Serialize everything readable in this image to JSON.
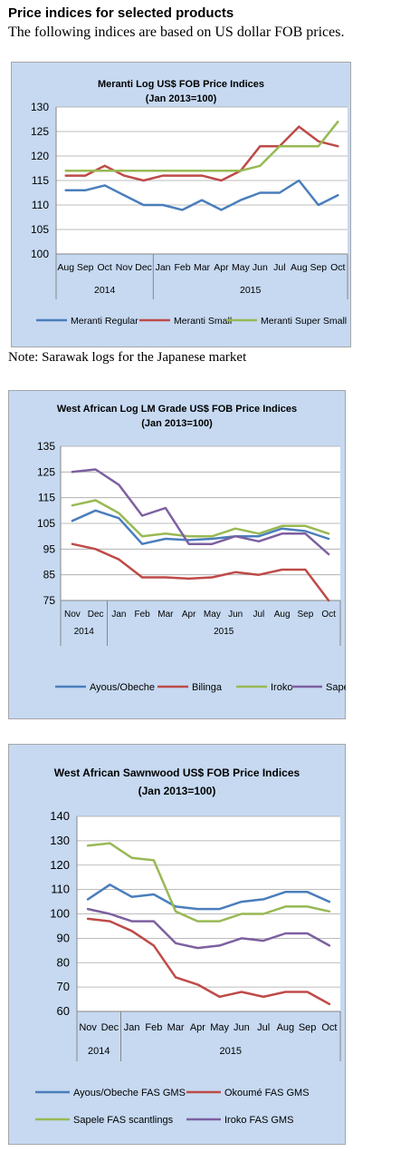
{
  "header": {
    "title": "Price indices for selected products",
    "subtitle": "The following indices are based on US dollar FOB prices."
  },
  "note": "Note: Sarawak logs for the Japanese market",
  "chart_data": [
    {
      "type": "line",
      "title": "Meranti Log US$ FOB Price Indices",
      "subtitle": "(Jan 2013=100)",
      "categories": [
        "Aug",
        "Sep",
        "Oct",
        "Nov",
        "Dec",
        "Jan",
        "Feb",
        "Mar",
        "Apr",
        "May",
        "Jun",
        "Jul",
        "Aug",
        "Sep",
        "Oct"
      ],
      "year_groups": [
        {
          "label": "2014",
          "from": 0,
          "to": 4
        },
        {
          "label": "2015",
          "from": 5,
          "to": 14
        }
      ],
      "ylim": [
        100,
        130
      ],
      "yticks": [
        100,
        105,
        110,
        115,
        120,
        125,
        130
      ],
      "legend": "bottom",
      "series": [
        {
          "name": "Meranti Regular",
          "color": "#4a7ebb",
          "values": [
            113,
            113,
            114,
            112,
            110,
            110,
            109,
            111,
            109,
            111,
            112.5,
            112.5,
            115,
            110,
            112
          ]
        },
        {
          "name": "Meranti Small",
          "color": "#be4b48",
          "values": [
            116,
            116,
            118,
            116,
            115,
            116,
            116,
            116,
            115,
            117,
            122,
            122,
            126,
            123,
            122
          ]
        },
        {
          "name": "Meranti Super Small",
          "color": "#98b954",
          "values": [
            117,
            117,
            117,
            117,
            117,
            117,
            117,
            117,
            117,
            117,
            118,
            122,
            122,
            122,
            127
          ]
        }
      ]
    },
    {
      "type": "line",
      "title": "West African Log LM Grade US$ FOB Price Indices",
      "subtitle": "(Jan 2013=100)",
      "categories": [
        "Nov",
        "Dec",
        "Jan",
        "Feb",
        "Mar",
        "Apr",
        "May",
        "Jun",
        "Jul",
        "Aug",
        "Sep",
        "Oct"
      ],
      "year_groups": [
        {
          "label": "2014",
          "from": 0,
          "to": 1
        },
        {
          "label": "2015",
          "from": 2,
          "to": 11
        }
      ],
      "ylim": [
        75,
        135
      ],
      "yticks": [
        75,
        85,
        95,
        105,
        115,
        125,
        135
      ],
      "legend": "bottom",
      "series": [
        {
          "name": "Ayous/Obeche",
          "color": "#4a7ebb",
          "values": [
            106,
            110,
            107,
            97,
            99,
            98.5,
            99,
            100,
            100,
            103,
            102,
            99
          ]
        },
        {
          "name": "Bilinga",
          "color": "#be4b48",
          "values": [
            97,
            95,
            91,
            84,
            84,
            83.5,
            84,
            86,
            85,
            87,
            87,
            74
          ]
        },
        {
          "name": "Iroko",
          "color": "#98b954",
          "values": [
            112,
            114,
            109,
            100,
            101,
            100,
            100,
            103,
            101,
            104,
            104,
            101
          ]
        },
        {
          "name": "Sapele",
          "color": "#7d60a0",
          "values": [
            125,
            126,
            120,
            108,
            111,
            97,
            97,
            100,
            98,
            101,
            101,
            93
          ]
        }
      ]
    },
    {
      "type": "line",
      "title": "West African Sawnwood US$ FOB Price Indices",
      "subtitle": "(Jan 2013=100)",
      "categories": [
        "Nov",
        "Dec",
        "Jan",
        "Feb",
        "Mar",
        "Apr",
        "May",
        "Jun",
        "Jul",
        "Aug",
        "Sep",
        "Oct"
      ],
      "year_groups": [
        {
          "label": "2014",
          "from": 0,
          "to": 1
        },
        {
          "label": "2015",
          "from": 2,
          "to": 11
        }
      ],
      "ylim": [
        60,
        140
      ],
      "yticks": [
        60,
        70,
        80,
        90,
        100,
        110,
        120,
        130,
        140
      ],
      "legend": "bottom",
      "series": [
        {
          "name": "Ayous/Obeche  FAS GMS",
          "color": "#4a7ebb",
          "values": [
            106,
            112,
            107,
            108,
            103,
            102,
            102,
            105,
            106,
            109,
            109,
            105
          ]
        },
        {
          "name": "Okoumé  FAS GMS",
          "color": "#be4b48",
          "values": [
            98,
            97,
            93,
            87,
            74,
            71,
            66,
            68,
            66,
            68,
            68,
            63
          ]
        },
        {
          "name": "Sapele FAS scantlings",
          "color": "#98b954",
          "values": [
            128,
            129,
            123,
            122,
            101,
            97,
            97,
            100,
            100,
            103,
            103,
            101
          ]
        },
        {
          "name": "Iroko FAS GMS",
          "color": "#7d60a0",
          "values": [
            102,
            100,
            97,
            97,
            88,
            86,
            87,
            90,
            89,
            92,
            92,
            87
          ]
        }
      ]
    }
  ]
}
